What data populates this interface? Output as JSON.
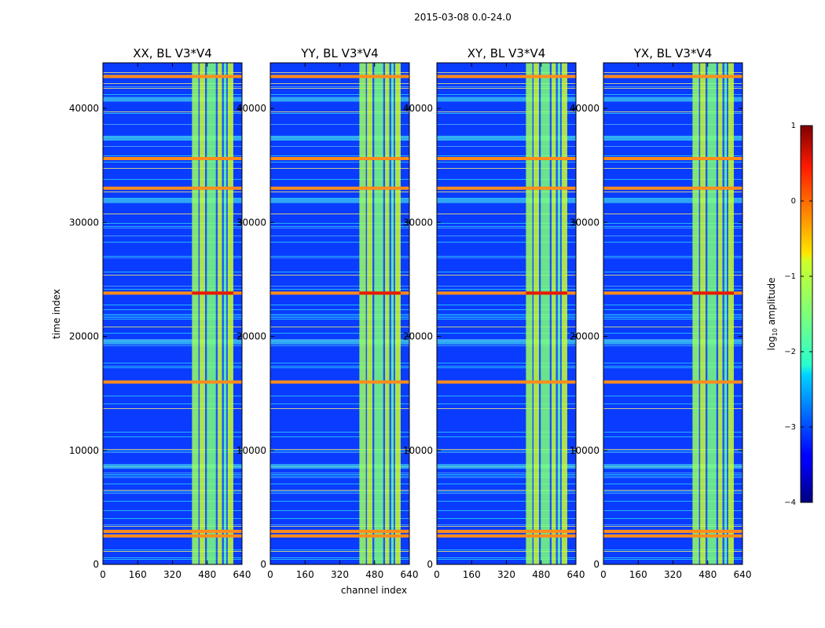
{
  "figure": {
    "suptitle": "2015-03-08 0.0-24.0"
  },
  "chart_data": {
    "type": "heatmap",
    "title": "2015-03-08 0.0-24.0",
    "xlabel": "channel index",
    "ylabel": "time index",
    "xlim": [
      0,
      640
    ],
    "ylim": [
      0,
      44000
    ],
    "xticks": [
      "0",
      "160",
      "320",
      "480",
      "640"
    ],
    "yticks": [
      "0",
      "10000",
      "20000",
      "30000",
      "40000"
    ],
    "panels": [
      {
        "title": "XX, BL V3*V4",
        "show_ylabels": true
      },
      {
        "title": "YY, BL V3*V4",
        "show_ylabels": true
      },
      {
        "title": "XY, BL V3*V4",
        "show_ylabels": true
      },
      {
        "title": "YX, BL V3*V4",
        "show_ylabels": true
      }
    ],
    "colorbar": {
      "label_main": "log",
      "label_sub": "10",
      "label_tail": " amplitude",
      "range": [
        -4,
        1
      ],
      "ticks": [
        "1",
        "0",
        "−1",
        "−2",
        "−3",
        "−4"
      ],
      "colormap": "jet"
    },
    "rfi_channel_band": [
      410,
      600
    ],
    "strong_rows_time": [
      2500,
      2900,
      16000,
      23800,
      33000,
      35600,
      42800
    ],
    "bright_band_rows_time": [
      8600,
      19500,
      31900,
      37400,
      40800
    ]
  }
}
